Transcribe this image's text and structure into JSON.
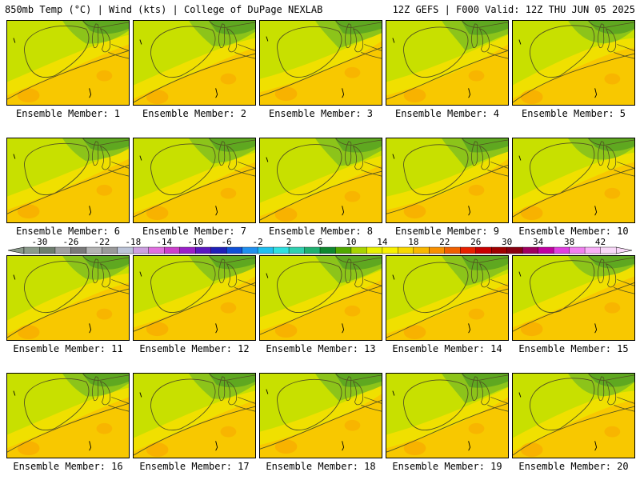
{
  "header": {
    "left": "850mb Temp (°C) | Wind (kts) | College of DuPage NEXLAB",
    "right": "12Z GEFS | F000 Valid: 12Z THU JUN 05 2025"
  },
  "panels": [
    {
      "member": 1,
      "label": "Ensemble Member: 1"
    },
    {
      "member": 2,
      "label": "Ensemble Member: 2"
    },
    {
      "member": 3,
      "label": "Ensemble Member: 3"
    },
    {
      "member": 4,
      "label": "Ensemble Member: 4"
    },
    {
      "member": 5,
      "label": "Ensemble Member: 5"
    },
    {
      "member": 6,
      "label": "Ensemble Member: 6"
    },
    {
      "member": 7,
      "label": "Ensemble Member: 7"
    },
    {
      "member": 8,
      "label": "Ensemble Member: 8"
    },
    {
      "member": 9,
      "label": "Ensemble Member: 9"
    },
    {
      "member": 10,
      "label": "Ensemble Member: 10"
    },
    {
      "member": 11,
      "label": "Ensemble Member: 11"
    },
    {
      "member": 12,
      "label": "Ensemble Member: 12"
    },
    {
      "member": 13,
      "label": "Ensemble Member: 13"
    },
    {
      "member": 14,
      "label": "Ensemble Member: 14"
    },
    {
      "member": 15,
      "label": "Ensemble Member: 15"
    },
    {
      "member": 16,
      "label": "Ensemble Member: 16"
    },
    {
      "member": 17,
      "label": "Ensemble Member: 17"
    },
    {
      "member": 18,
      "label": "Ensemble Member: 18"
    },
    {
      "member": 19,
      "label": "Ensemble Member: 19"
    },
    {
      "member": 20,
      "label": "Ensemble Member: 20"
    }
  ],
  "colorbar": {
    "ticks": [
      "-30",
      "-26",
      "-22",
      "-18",
      "-14",
      "-10",
      "-6",
      "-2",
      "2",
      "6",
      "10",
      "14",
      "18",
      "22",
      "26",
      "30",
      "34",
      "38",
      "42"
    ],
    "colors": [
      "#8a9a8a",
      "#6e7e6e",
      "#a0a0a0",
      "#7a7a7a",
      "#b4b4b4",
      "#9a9a9a",
      "#bcc4d8",
      "#cca0e0",
      "#e070e0",
      "#cc40cc",
      "#9a20c8",
      "#5a18c0",
      "#2020b8",
      "#1050d8",
      "#2090f0",
      "#20c0f0",
      "#30e0e0",
      "#30d0b0",
      "#20b070",
      "#108830",
      "#50a800",
      "#a8d400",
      "#e8f000",
      "#f8f000",
      "#f8d800",
      "#f8b800",
      "#f89000",
      "#f06000",
      "#e82000",
      "#c80000",
      "#a00000",
      "#880010",
      "#a00060",
      "#c000a0",
      "#e040e0",
      "#f080f0",
      "#f8b0f8",
      "#f8d8f8"
    ]
  },
  "map_colors": {
    "green_dark": "#5fa820",
    "green_mid": "#8cc41a",
    "green_light": "#c8e000",
    "yellow": "#f0e000",
    "gold": "#f8c800",
    "orange": "#f8a800",
    "contour": "#505020"
  }
}
